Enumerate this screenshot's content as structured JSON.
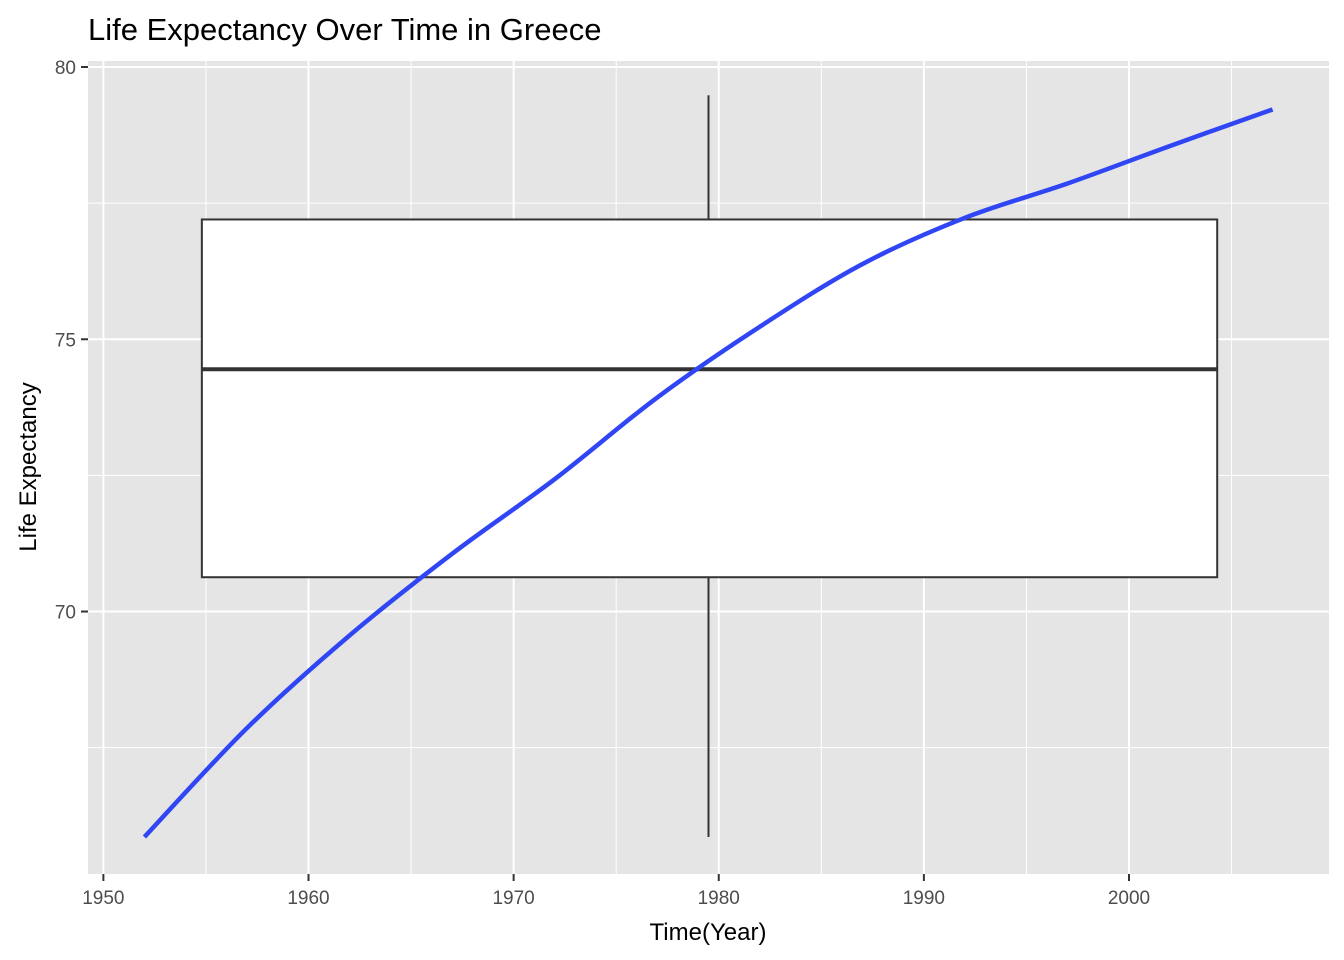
{
  "chart_data": {
    "type": "line",
    "title": "Life Expectancy Over Time in Greece",
    "xlabel": "Time(Year)",
    "ylabel": "Life Expectancy",
    "xlim": [
      1949.25,
      2009.75
    ],
    "ylim": [
      65.18,
      80.11
    ],
    "x_ticks": [
      1950,
      1960,
      1970,
      1980,
      1990,
      2000
    ],
    "y_ticks": [
      70,
      75,
      80
    ],
    "x_tick_labels": [
      "1950",
      "1960",
      "1970",
      "1980",
      "1990",
      "2000"
    ],
    "y_tick_labels": [
      "70",
      "75",
      "80"
    ],
    "grid": true,
    "series": [
      {
        "type": "smooth-line",
        "color": "#3046f5",
        "x": [
          1952,
          1957,
          1962,
          1967,
          1972,
          1977,
          1982,
          1987,
          1992,
          1997,
          2002,
          2007
        ],
        "y": [
          65.86,
          67.86,
          69.56,
          71.06,
          72.43,
          73.93,
          75.23,
          76.38,
          77.23,
          77.86,
          78.55,
          79.22
        ]
      }
    ],
    "boxplot": {
      "x_center": 1979.5,
      "x_range": [
        1954.8,
        2004.3
      ],
      "min": 65.86,
      "q1": 70.63,
      "median": 74.45,
      "q3": 77.2,
      "max": 79.48
    },
    "colors": {
      "panel_background": "#e5e5e5",
      "grid": "#ffffff",
      "line": "#3046f5",
      "box_fill": "#ffffff",
      "box_stroke": "#333333"
    }
  }
}
